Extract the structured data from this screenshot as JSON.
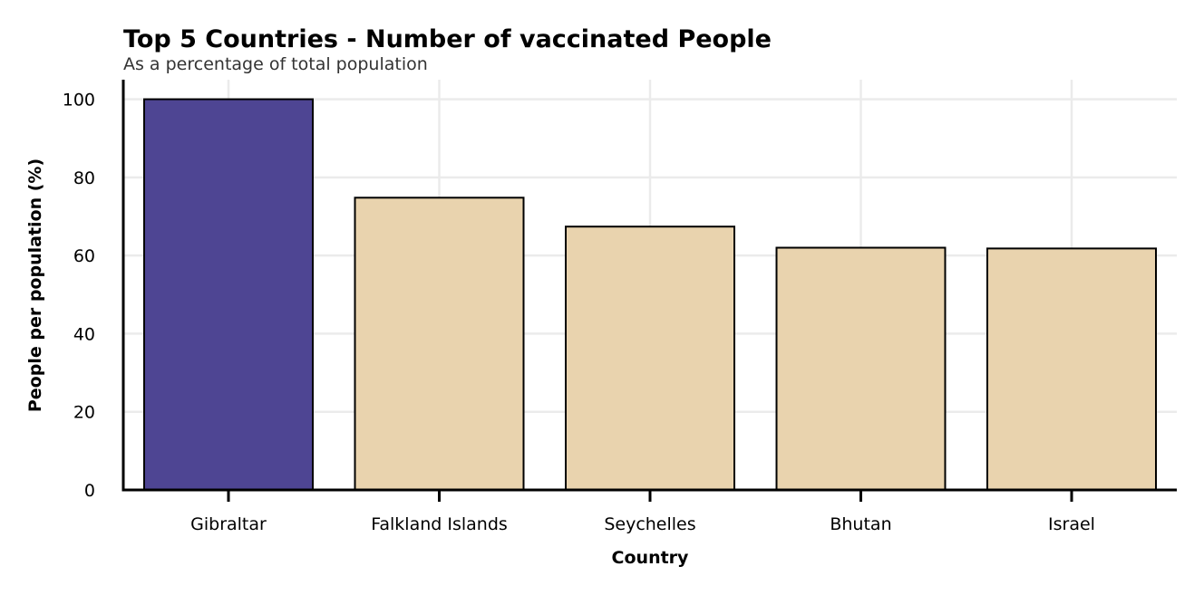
{
  "chart_data": {
    "type": "bar",
    "title": "Top 5 Countries - Number of vaccinated People",
    "subtitle": "As a percentage of total population",
    "xlabel": "Country",
    "ylabel": "People per population (%)",
    "categories": [
      "Gibraltar",
      "Falkland Islands",
      "Seychelles",
      "Bhutan",
      "Israel"
    ],
    "values": [
      100,
      74.8,
      67.4,
      62.0,
      61.8
    ],
    "ylim": [
      0,
      105
    ],
    "yticks": [
      0,
      20,
      40,
      60,
      80,
      100
    ],
    "grid": true,
    "colors": {
      "highlight": "#4e4593",
      "default": "#e9d3ae",
      "edge": "#000000",
      "grid": "#ebebeb"
    },
    "highlight_index": 0
  }
}
